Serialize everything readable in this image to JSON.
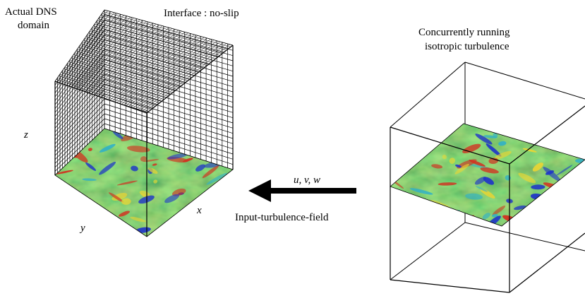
{
  "labels": {
    "domain_line1": "Actual DNS",
    "domain_line2": "domain",
    "interface": "Interface : no-slip",
    "concurrent_line1": "Concurrently running",
    "concurrent_line2": "isotropic turbulence",
    "z_axis": "z",
    "x_axis": "x",
    "y_axis": "y",
    "velocity": "u, v, w",
    "input_field": "Input-turbulence-field"
  },
  "colors": {
    "field_green": "#3fb84a",
    "field_blue": "#1f35c8",
    "field_red": "#d23020",
    "field_yellow": "#e8d534",
    "field_cyan": "#2fb0c8",
    "arrow": "#000000"
  }
}
